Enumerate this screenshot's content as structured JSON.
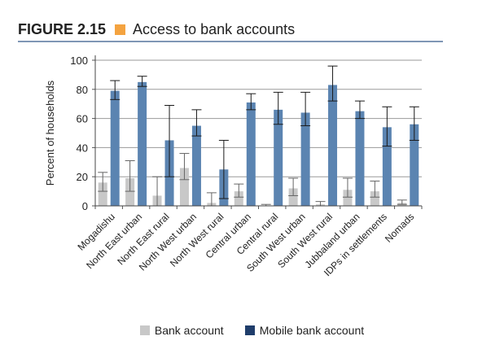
{
  "figure": {
    "number": "FIGURE 2.15",
    "title": "Access to bank accounts",
    "accent_color": "#f4a340"
  },
  "chart_data": {
    "type": "bar",
    "ylabel": "Percent of households",
    "ylim": [
      0,
      100
    ],
    "yticks": [
      0,
      20,
      40,
      60,
      80,
      100
    ],
    "grid": true,
    "legend_position": "bottom",
    "error_bars": true,
    "categories": [
      "Mogadishu",
      "North East urban",
      "North East rural",
      "North West urban",
      "North West rural",
      "Central urban",
      "Central rural",
      "South West urban",
      "South West rural",
      "Jubbaland urban",
      "IDPs in settlements",
      "Nomads"
    ],
    "series": [
      {
        "name": "Bank account",
        "color": "#c8c8c8",
        "values": [
          16,
          19,
          7,
          26,
          2,
          10,
          0,
          12,
          1,
          11,
          10,
          2
        ],
        "error_low": [
          10,
          10,
          0,
          18,
          0,
          6,
          0,
          7,
          0,
          6,
          6,
          1
        ],
        "error_high": [
          23,
          31,
          20,
          36,
          9,
          15,
          1,
          19,
          3,
          19,
          17,
          4
        ]
      },
      {
        "name": "Mobile bank account",
        "color": "#5b84b1",
        "values": [
          79,
          85,
          45,
          55,
          25,
          71,
          66,
          64,
          83,
          65,
          54,
          56
        ],
        "error_low": [
          73,
          82,
          20,
          48,
          5,
          66,
          56,
          55,
          72,
          60,
          41,
          45
        ],
        "error_high": [
          86,
          89,
          69,
          66,
          45,
          77,
          78,
          78,
          96,
          72,
          68,
          68
        ]
      }
    ]
  }
}
